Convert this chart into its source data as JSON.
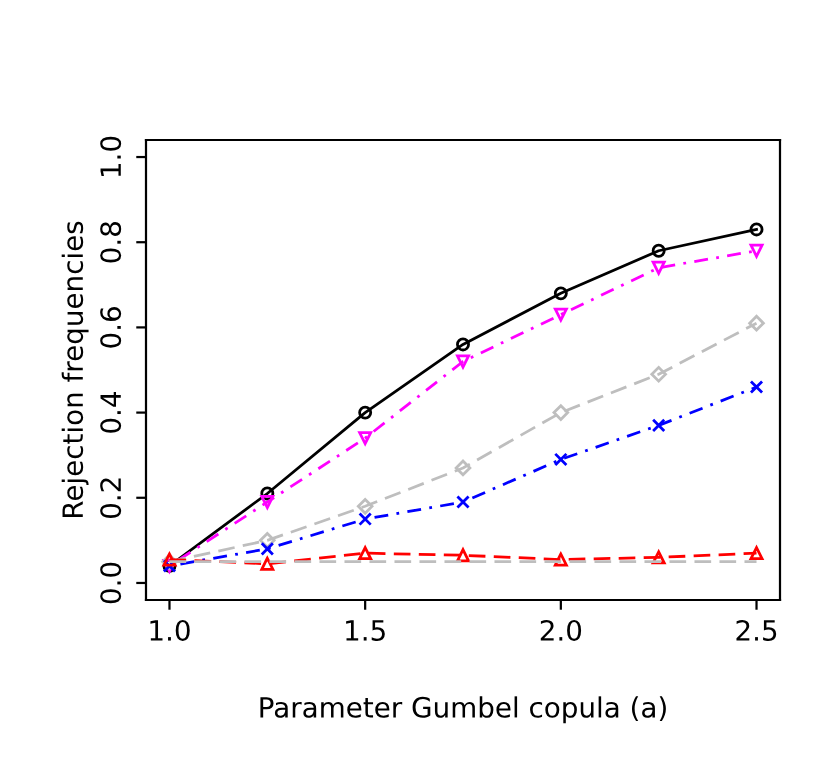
{
  "chart_data": {
    "type": "line",
    "xlabel": "Parameter Gumbel copula (a)",
    "ylabel": "Rejection frequencies",
    "x": [
      1.0,
      1.25,
      1.5,
      1.75,
      2.0,
      2.25,
      2.5
    ],
    "xlim": [
      0.94,
      2.56
    ],
    "xticks": [
      {
        "value": 1.0,
        "label": "1.0"
      },
      {
        "value": 1.5,
        "label": "1.5"
      },
      {
        "value": 2.0,
        "label": "2.0"
      },
      {
        "value": 2.5,
        "label": "2.5"
      }
    ],
    "ylim": [
      -0.04,
      1.04
    ],
    "yticks": [
      {
        "value": 0,
        "label": "0.0"
      },
      {
        "value": 0.2,
        "label": "0.2"
      },
      {
        "value": 0.4,
        "label": "0.4"
      },
      {
        "value": 0.6,
        "label": "0.6"
      },
      {
        "value": 0.8,
        "label": "0.8"
      },
      {
        "value": 1.0,
        "label": "1.0"
      }
    ],
    "grid": false,
    "series": [
      {
        "color": "#000000",
        "marker": "circle",
        "line_style": "solid",
        "values": [
          0.04,
          0.21,
          0.4,
          0.56,
          0.68,
          0.78,
          0.83
        ]
      },
      {
        "color": "#ff00ff",
        "marker": "triangle_down",
        "line_style": "dashdot",
        "values": [
          0.04,
          0.19,
          0.34,
          0.52,
          0.63,
          0.74,
          0.78
        ]
      },
      {
        "color": "#bebebe",
        "marker": "diamond",
        "line_style": "dashed",
        "values": [
          0.05,
          0.1,
          0.18,
          0.27,
          0.4,
          0.49,
          0.61
        ]
      },
      {
        "color": "#0000ff",
        "marker": "cross",
        "line_style": "dashdot",
        "values": [
          0.04,
          0.08,
          0.15,
          0.19,
          0.29,
          0.37,
          0.46
        ]
      },
      {
        "color": "#ff0000",
        "marker": "triangle",
        "line_style": "dashed",
        "values": [
          0.055,
          0.045,
          0.07,
          0.065,
          0.055,
          0.06,
          0.07
        ]
      },
      {
        "color": "#bebebe",
        "marker": "none",
        "line_style": "dashed",
        "values": [
          0.05,
          0.05,
          0.05,
          0.05,
          0.05,
          0.05,
          0.05
        ]
      }
    ]
  }
}
